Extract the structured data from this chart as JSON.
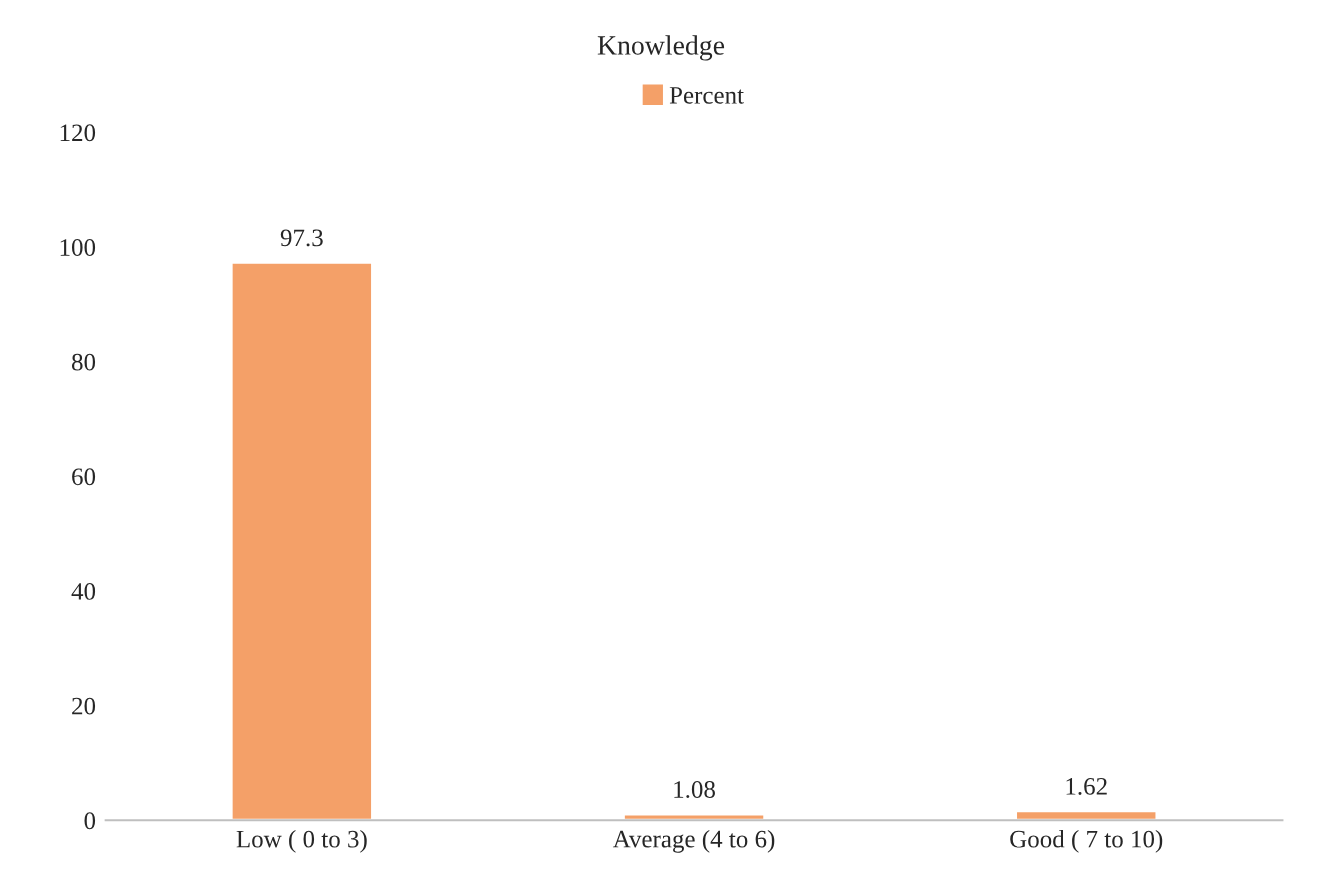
{
  "chart_data": {
    "type": "bar",
    "title": "Knowledge",
    "categories": [
      "Low ( 0 to 3)",
      "Average (4 to 6)",
      "Good ( 7 to 10)"
    ],
    "series": [
      {
        "name": "Percent",
        "color": "#f4a068",
        "values": [
          97.3,
          1.08,
          1.62
        ]
      }
    ],
    "ylim": [
      0,
      120
    ],
    "yticks": [
      0,
      20,
      40,
      60,
      80,
      100,
      120
    ],
    "data_labels": true,
    "grid": false,
    "legend": "top"
  }
}
